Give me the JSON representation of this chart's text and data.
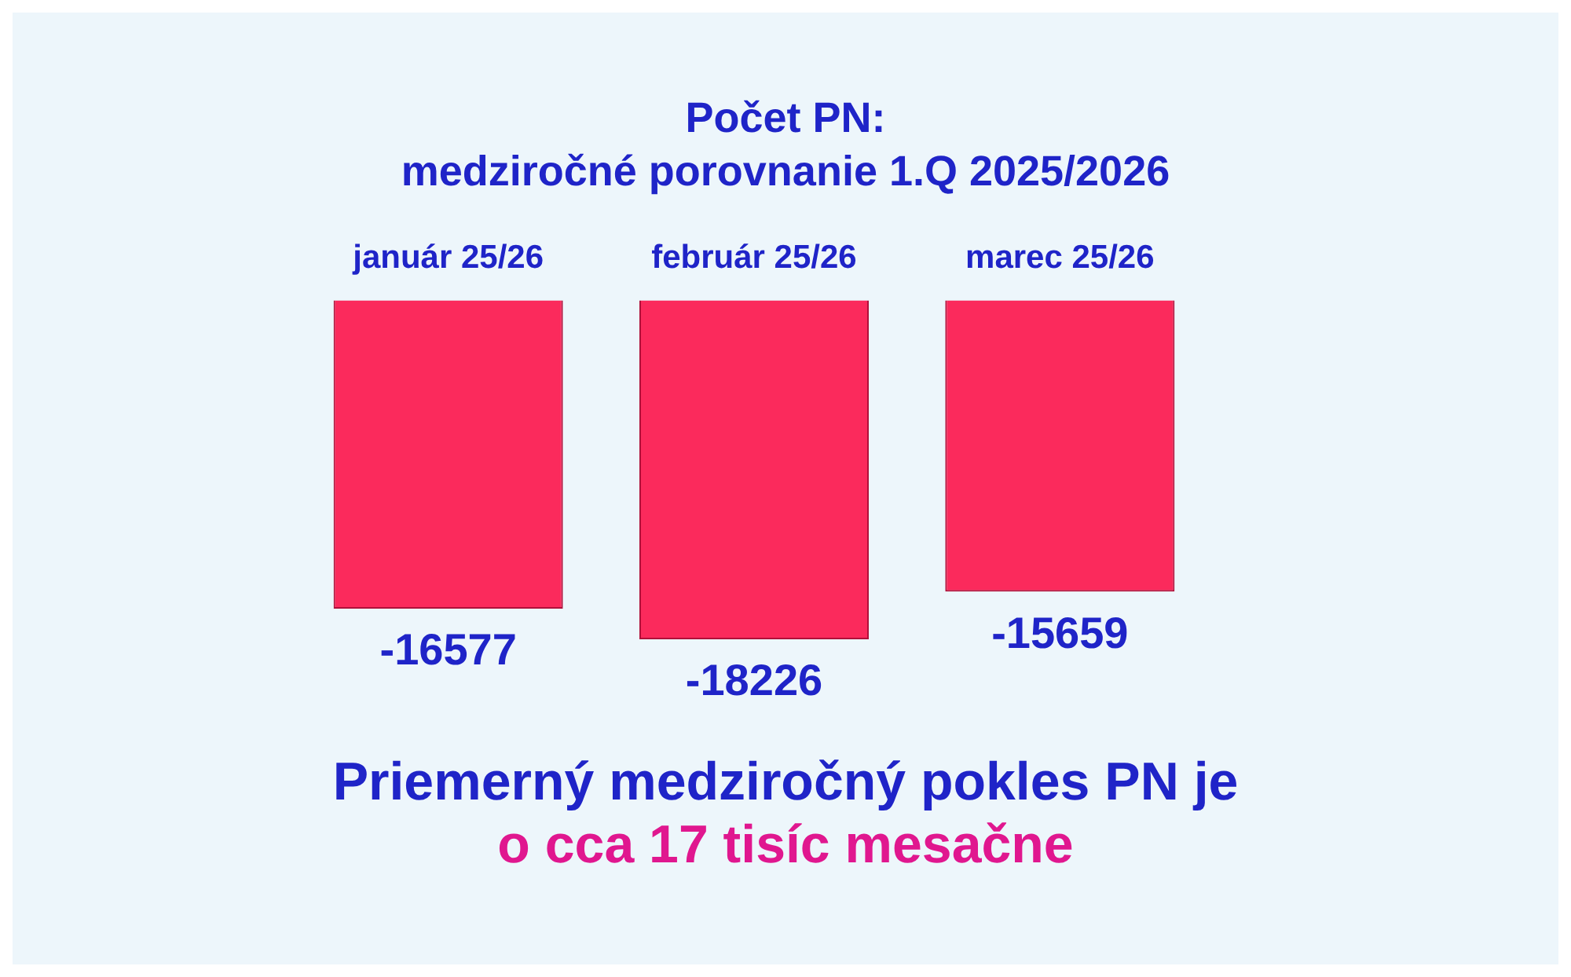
{
  "chart_data": {
    "type": "bar",
    "title": "Počet PN:",
    "subtitle": "medziročné porovnanie 1.Q 2025/2026",
    "categories": [
      "január 25/26",
      "február 25/26",
      "marec 25/26"
    ],
    "values": [
      -16577,
      -18226,
      -15659
    ],
    "color": "#fb2a5c",
    "data_labels": true,
    "grid": false,
    "legend": false,
    "tick_labels": "x",
    "annotations": [
      "Priemerný medziročný pokles PN je",
      "o cca 17 tisíc mesačne"
    ]
  }
}
